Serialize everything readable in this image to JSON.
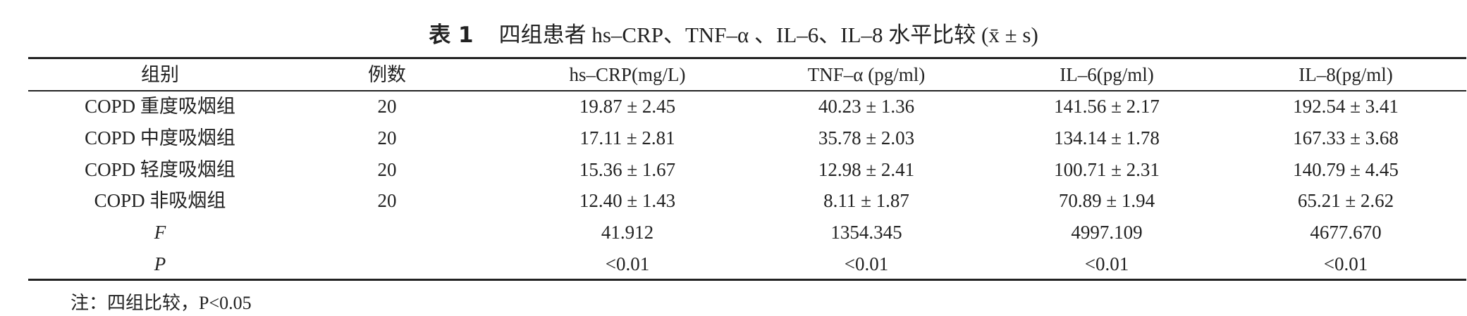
{
  "title": {
    "label": "表 1",
    "text": "四组患者 hs–CRP、TNF–α 、IL–6、IL–8 水平比较 (x̄ ± s)"
  },
  "table": {
    "header": [
      "组别",
      "例数",
      "hs–CRP(mg/L)",
      "TNF–α (pg/ml)",
      "IL–6(pg/ml)",
      "IL–8(pg/ml)"
    ],
    "rows": [
      {
        "label": "COPD 重度吸烟组",
        "n": "20",
        "values": [
          "19.87 ± 2.45",
          "40.23 ± 1.36",
          "141.56 ± 2.17",
          "192.54 ± 3.41"
        ]
      },
      {
        "label": "COPD 中度吸烟组",
        "n": "20",
        "values": [
          "17.11 ± 2.81",
          "35.78 ± 2.03",
          "134.14 ± 1.78",
          "167.33 ± 3.68"
        ]
      },
      {
        "label": "COPD 轻度吸烟组",
        "n": "20",
        "values": [
          "15.36 ± 1.67",
          "12.98 ± 2.41",
          "100.71 ± 2.31",
          "140.79 ± 4.45"
        ]
      },
      {
        "label": "COPD 非吸烟组",
        "n": "20",
        "values": [
          "12.40 ± 1.43",
          "8.11 ± 1.87",
          "70.89 ± 1.94",
          "65.21 ± 2.62"
        ]
      },
      {
        "label": "F",
        "values": [
          "41.912",
          "1354.345",
          "4997.109",
          "4677.670"
        ]
      },
      {
        "label": "P",
        "values": [
          "<0.01",
          "<0.01",
          "<0.01",
          "<0.01"
        ]
      }
    ]
  },
  "note": "注：四组比较，P<0.05"
}
